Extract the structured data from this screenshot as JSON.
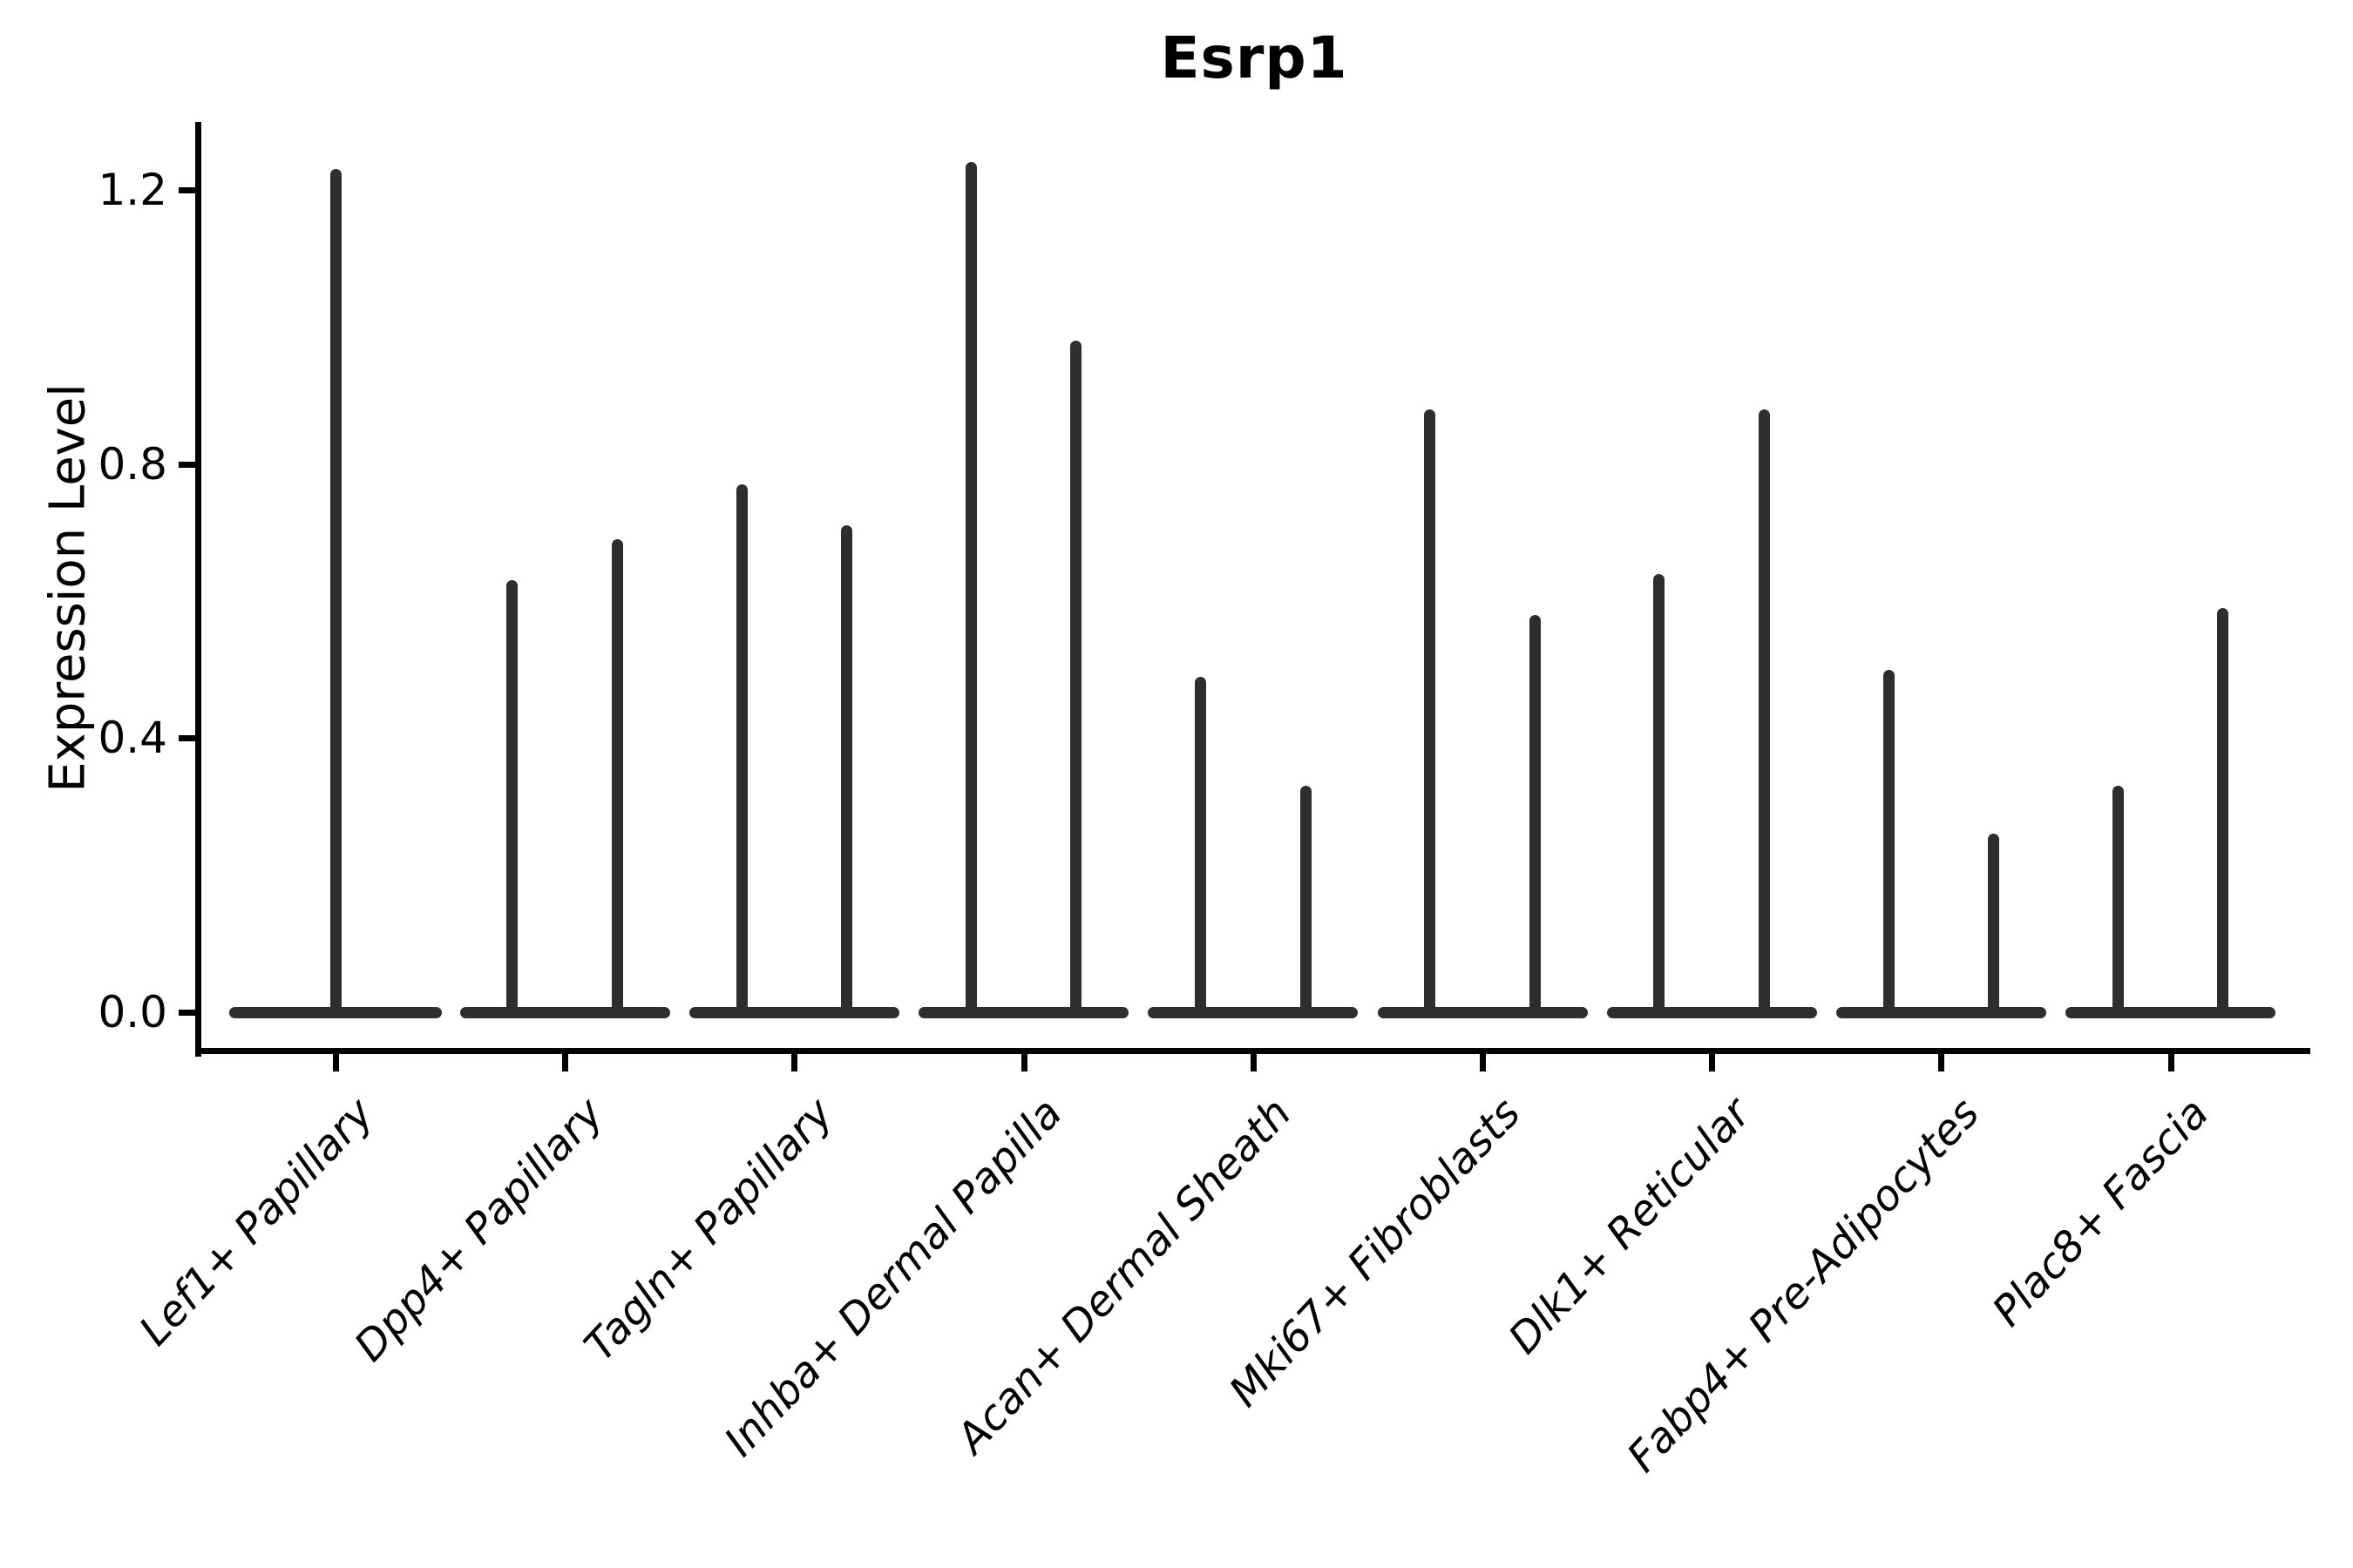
{
  "colors": {
    "violin": "#2e2e2e",
    "axis": "#000000",
    "text": "#000000",
    "background": "#ffffff"
  },
  "chart_data": {
    "type": "violin",
    "title": "Esrp1",
    "xlabel": "",
    "ylabel": "Expression Level",
    "ylim": [
      0,
      1.28
    ],
    "grid": false,
    "legend": "none",
    "y_ticks": [
      {
        "value": 0.0,
        "label": "0.0"
      },
      {
        "value": 0.4,
        "label": "0.4"
      },
      {
        "value": 0.8,
        "label": "0.8"
      },
      {
        "value": 1.2,
        "label": "1.2"
      }
    ],
    "description": "Violin plot of Esrp1 expression; each category shows near-zero-width violins (most cells at 0) with thin spikes reaching the maximum expression value per violin.",
    "groups": [
      {
        "label": "Lef1+ Papillary",
        "violin_max": [
          1.23
        ]
      },
      {
        "label": "Dpp4+ Papillary",
        "violin_max": [
          0.63,
          0.69
        ]
      },
      {
        "label": "Tagln+ Papillary",
        "violin_max": [
          0.77,
          0.71
        ]
      },
      {
        "label": "Inhba+ Dermal Papilla",
        "violin_max": [
          1.24,
          0.98
        ]
      },
      {
        "label": "Acan+ Dermal Sheath",
        "violin_max": [
          0.49,
          0.33
        ]
      },
      {
        "label": "Mki67+ Fibroblasts",
        "violin_max": [
          0.88,
          0.58
        ]
      },
      {
        "label": "Dlk1+ Reticular",
        "violin_max": [
          0.64,
          0.88
        ]
      },
      {
        "label": "Fabp4+ Pre-Adipocytes",
        "violin_max": [
          0.5,
          0.26
        ]
      },
      {
        "label": "Plac8+ Fascia",
        "violin_max": [
          0.33,
          0.59
        ]
      }
    ]
  }
}
